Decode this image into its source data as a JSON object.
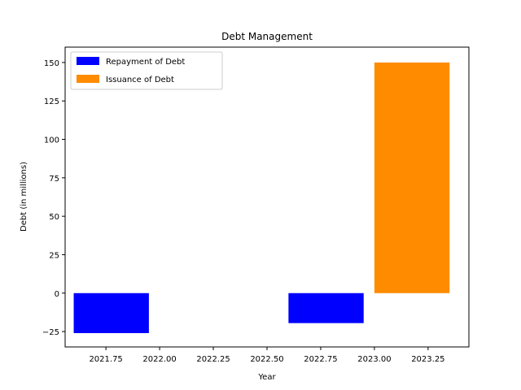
{
  "chart_data": {
    "type": "bar",
    "title": "Debt Management",
    "xlabel": "Year",
    "ylabel": "Debt (in millions)",
    "xlim": [
      2021.56,
      2023.44
    ],
    "ylim": [
      -35,
      160
    ],
    "xticks": [
      "2021.75",
      "2022.00",
      "2022.25",
      "2022.50",
      "2022.75",
      "2023.00",
      "2023.25"
    ],
    "yticks": [
      "−25",
      "0",
      "25",
      "50",
      "75",
      "100",
      "125",
      "150"
    ],
    "grid": false,
    "legend_position": "upper-left",
    "series": [
      {
        "name": "Repayment of Debt",
        "color": "#0000ff",
        "bars": [
          {
            "x_start": 2021.6,
            "x_end": 2021.95,
            "value": -26
          },
          {
            "x_start": 2022.6,
            "x_end": 2022.95,
            "value": -19.5
          }
        ]
      },
      {
        "name": "Issuance of Debt",
        "color": "#ff8c00",
        "bars": [
          {
            "x_start": 2023.0,
            "x_end": 2023.35,
            "value": 150
          }
        ]
      }
    ]
  }
}
